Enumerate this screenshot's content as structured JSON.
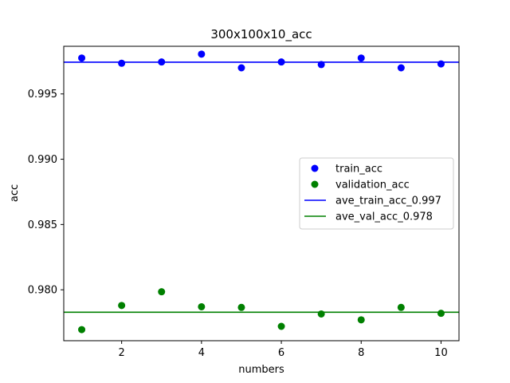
{
  "chart_data": {
    "type": "scatter",
    "title": "300x100x10_acc",
    "xlabel": "numbers",
    "ylabel": "acc",
    "xlim": [
      0.55,
      10.45
    ],
    "ylim": [
      0.9761,
      0.99865
    ],
    "x_ticks": [
      2,
      4,
      6,
      8,
      10
    ],
    "x_tick_labels": [
      "2",
      "4",
      "6",
      "8",
      "10"
    ],
    "y_ticks": [
      0.98,
      0.985,
      0.99,
      0.995
    ],
    "y_tick_labels": [
      "0.980",
      "0.985",
      "0.990",
      "0.995"
    ],
    "grid": false,
    "legend_position": "center-right",
    "x": [
      1,
      2,
      3,
      4,
      5,
      6,
      7,
      8,
      9,
      10
    ],
    "series": [
      {
        "name": "train_acc",
        "kind": "points",
        "color": "#0000ff",
        "values": [
          0.99775,
          0.99735,
          0.99745,
          0.99805,
          0.997,
          0.99745,
          0.99725,
          0.99775,
          0.997,
          0.9973
        ]
      },
      {
        "name": "validation_acc",
        "kind": "points",
        "color": "#008000",
        "values": [
          0.97695,
          0.9788,
          0.97985,
          0.9787,
          0.97865,
          0.9772,
          0.97815,
          0.9777,
          0.97865,
          0.9782
        ]
      },
      {
        "name": "ave_train_acc_0.997",
        "kind": "hline",
        "color": "#0000ff",
        "value": 0.99743
      },
      {
        "name": "ave_val_acc_0.978",
        "kind": "hline",
        "color": "#008000",
        "value": 0.97828
      }
    ]
  }
}
